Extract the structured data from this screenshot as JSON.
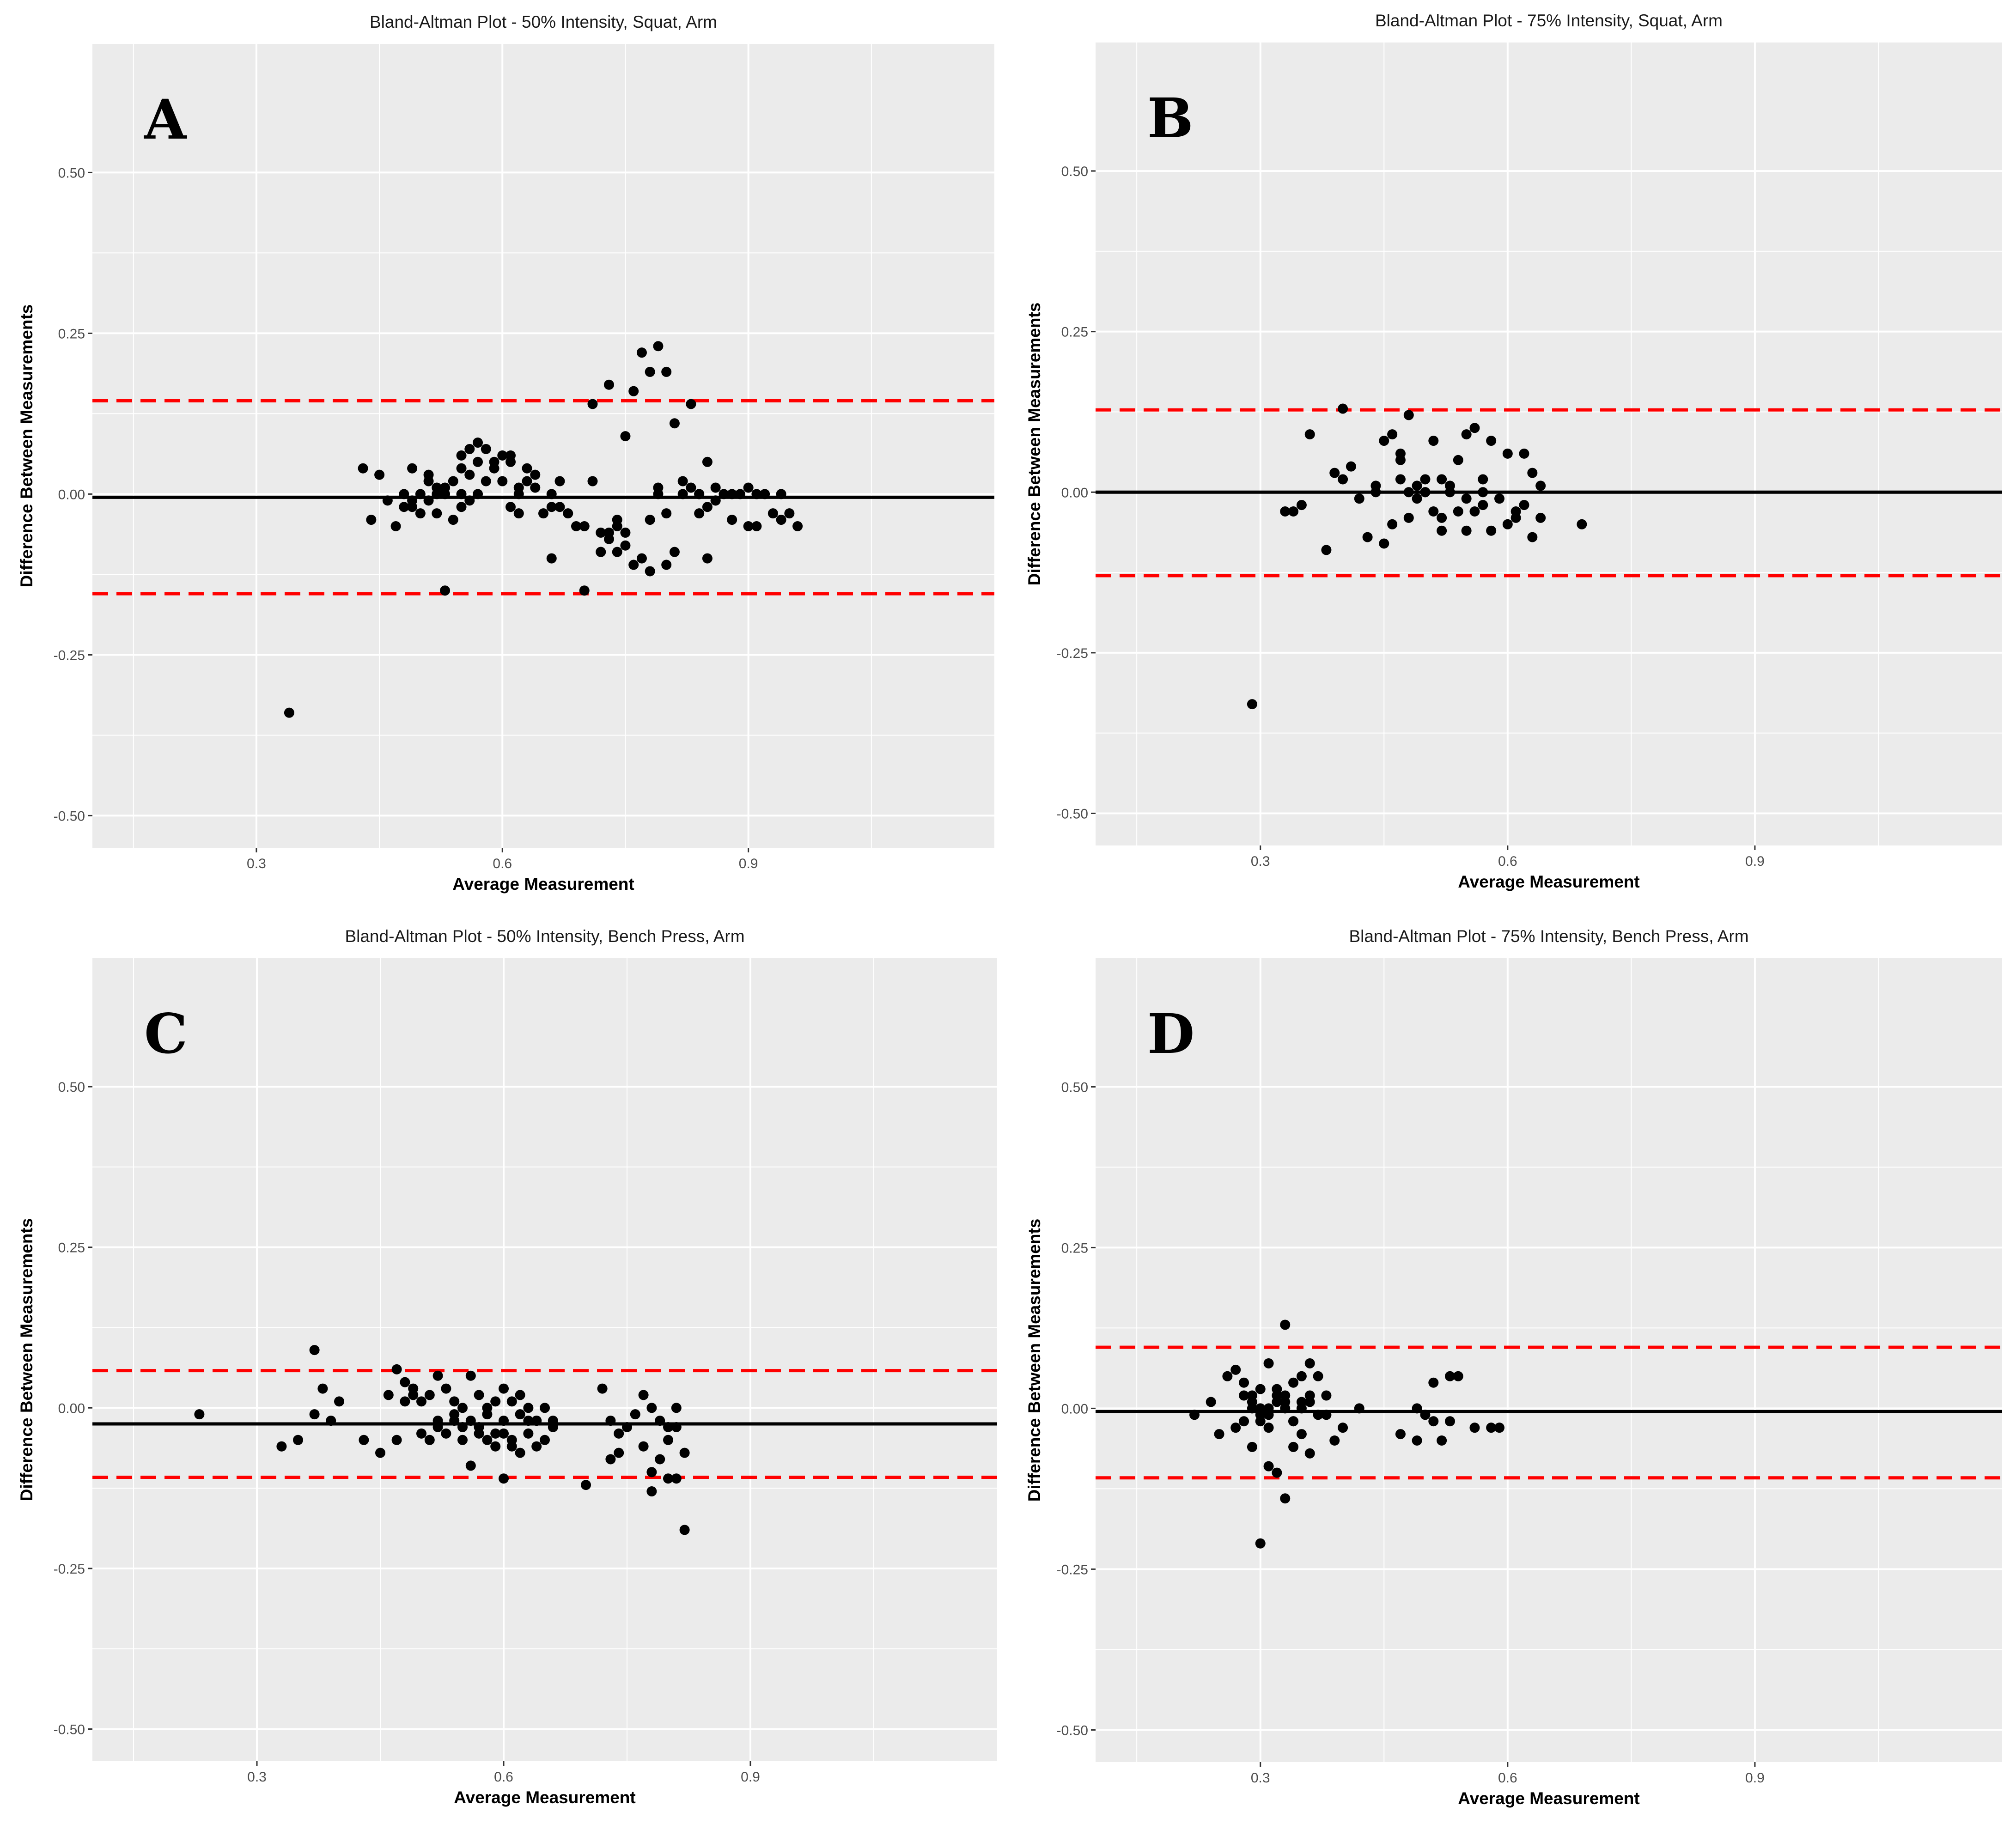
{
  "figure": {
    "background": "#ffffff",
    "panel_background": "#ebebeb",
    "grid_color": "#ffffff",
    "point_color": "#000000",
    "mean_line_color": "#000000",
    "limit_line_color": "#ff0000"
  },
  "chart_data": [
    {
      "letter": "A",
      "type": "scatter",
      "title": "Bland-Altman Plot - 50% Intensity, Squat, Arm",
      "xlabel": "Average Measurement",
      "ylabel": "Difference Between Measurements",
      "xlim": [
        0.1,
        1.2
      ],
      "ylim": [
        -0.55,
        0.7
      ],
      "xticks": [
        0.3,
        0.6,
        0.9
      ],
      "xtick_labels": [
        "0.3",
        "0.6",
        "0.9"
      ],
      "yticks": [
        0.5,
        0.25,
        0.0,
        -0.25,
        -0.5
      ],
      "ytick_labels": [
        "0.50",
        "0.25",
        "0.00",
        "-0.25",
        "-0.50"
      ],
      "mean_diff": -0.005,
      "upper_loa": 0.145,
      "lower_loa": -0.155,
      "grid": true,
      "x": [
        0.34,
        0.43,
        0.44,
        0.45,
        0.46,
        0.47,
        0.48,
        0.49,
        0.49,
        0.5,
        0.5,
        0.51,
        0.51,
        0.52,
        0.52,
        0.53,
        0.53,
        0.54,
        0.54,
        0.55,
        0.55,
        0.55,
        0.56,
        0.56,
        0.57,
        0.57,
        0.58,
        0.59,
        0.6,
        0.6,
        0.61,
        0.61,
        0.62,
        0.62,
        0.63,
        0.64,
        0.65,
        0.66,
        0.66,
        0.67,
        0.68,
        0.69,
        0.7,
        0.71,
        0.71,
        0.72,
        0.72,
        0.73,
        0.73,
        0.74,
        0.74,
        0.75,
        0.75,
        0.76,
        0.76,
        0.77,
        0.77,
        0.78,
        0.78,
        0.79,
        0.79,
        0.8,
        0.8,
        0.81,
        0.81,
        0.82,
        0.83,
        0.83,
        0.84,
        0.84,
        0.85,
        0.85,
        0.86,
        0.86,
        0.87,
        0.88,
        0.89,
        0.9,
        0.91,
        0.92,
        0.93,
        0.94,
        0.95,
        0.96,
        0.49,
        0.53,
        0.55,
        0.58,
        0.61,
        0.64,
        0.67,
        0.7,
        0.75,
        0.78,
        0.8,
        0.85,
        0.88,
        0.52,
        0.57,
        0.63,
        0.72,
        0.79,
        0.84,
        0.9,
        0.94,
        0.48,
        0.51,
        0.56,
        0.59,
        0.62,
        0.66,
        0.74,
        0.82,
        0.86,
        0.91,
        0.73
      ],
      "y": [
        -0.34,
        0.04,
        -0.04,
        0.03,
        -0.01,
        -0.05,
        0.0,
        -0.02,
        0.04,
        -0.03,
        0.0,
        0.02,
        -0.01,
        0.0,
        -0.03,
        0.01,
        -0.15,
        0.02,
        -0.04,
        0.06,
        0.04,
        0.0,
        0.07,
        0.03,
        0.08,
        0.05,
        0.07,
        0.04,
        0.06,
        0.02,
        0.05,
        -0.02,
        0.0,
        -0.03,
        0.02,
        0.03,
        -0.03,
        0.0,
        -0.1,
        0.02,
        -0.03,
        -0.05,
        -0.15,
        0.02,
        0.14,
        -0.06,
        -0.09,
        0.17,
        -0.07,
        -0.04,
        -0.09,
        0.09,
        -0.06,
        0.16,
        -0.11,
        0.22,
        -0.1,
        0.19,
        -0.12,
        0.23,
        0.0,
        0.19,
        -0.03,
        0.11,
        -0.09,
        0.02,
        0.14,
        0.01,
        0.0,
        -0.03,
        0.05,
        -0.1,
        0.01,
        -0.01,
        0.0,
        -0.04,
        0.0,
        0.01,
        -0.05,
        0.0,
        -0.03,
        -0.04,
        -0.03,
        -0.05,
        -0.01,
        0.0,
        -0.02,
        0.02,
        0.06,
        0.01,
        -0.02,
        -0.05,
        -0.08,
        -0.04,
        -0.11,
        -0.02,
        0.0,
        0.01,
        0.0,
        0.04,
        -0.09,
        0.01,
        0.0,
        -0.05,
        0.0,
        -0.02,
        0.03,
        -0.01,
        0.05,
        0.01,
        -0.02,
        -0.05,
        0.0,
        -0.01,
        0.0,
        -0.06
      ]
    },
    {
      "letter": "B",
      "type": "scatter",
      "title": "Bland-Altman Plot - 75% Intensity, Squat, Arm",
      "xlabel": "Average Measurement",
      "ylabel": "Difference Between Measurements",
      "xlim": [
        0.1,
        1.2
      ],
      "ylim": [
        -0.55,
        0.7
      ],
      "xticks": [
        0.3,
        0.6,
        0.9
      ],
      "xtick_labels": [
        "0.3",
        "0.6",
        "0.9"
      ],
      "yticks": [
        0.5,
        0.25,
        0.0,
        -0.25,
        -0.5
      ],
      "ytick_labels": [
        "0.50",
        "0.25",
        "0.00",
        "-0.25",
        "-0.50"
      ],
      "mean_diff": 0.0,
      "upper_loa": 0.128,
      "lower_loa": -0.13,
      "grid": true,
      "x": [
        0.29,
        0.33,
        0.34,
        0.35,
        0.36,
        0.38,
        0.39,
        0.4,
        0.4,
        0.41,
        0.42,
        0.43,
        0.44,
        0.45,
        0.45,
        0.46,
        0.46,
        0.47,
        0.47,
        0.48,
        0.48,
        0.49,
        0.49,
        0.5,
        0.5,
        0.51,
        0.51,
        0.52,
        0.52,
        0.53,
        0.54,
        0.54,
        0.55,
        0.55,
        0.56,
        0.56,
        0.57,
        0.57,
        0.58,
        0.59,
        0.6,
        0.61,
        0.62,
        0.62,
        0.63,
        0.63,
        0.64,
        0.64,
        0.69,
        0.48,
        0.5,
        0.53,
        0.55,
        0.58,
        0.61,
        0.47,
        0.52,
        0.57,
        0.44,
        0.6
      ],
      "y": [
        -0.33,
        -0.03,
        -0.03,
        -0.02,
        0.09,
        -0.09,
        0.03,
        0.13,
        0.02,
        0.04,
        -0.01,
        -0.07,
        0.0,
        0.08,
        -0.08,
        0.09,
        -0.05,
        0.05,
        0.02,
        0.12,
        0.0,
        0.01,
        -0.01,
        0.0,
        0.02,
        0.08,
        -0.03,
        -0.06,
        0.02,
        0.0,
        0.05,
        -0.03,
        0.09,
        -0.06,
        0.1,
        -0.03,
        -0.02,
        0.0,
        0.08,
        -0.01,
        0.06,
        -0.04,
        0.06,
        -0.02,
        0.03,
        -0.07,
        0.01,
        -0.04,
        -0.05,
        -0.04,
        0.0,
        0.01,
        -0.01,
        -0.06,
        -0.03,
        0.06,
        -0.04,
        0.02,
        0.01,
        -0.05
      ]
    },
    {
      "letter": "C",
      "type": "scatter",
      "title": "Bland-Altman Plot - 50% Intensity, Bench Press, Arm",
      "xlabel": "Average Measurement",
      "ylabel": "Difference Between Measurements",
      "xlim": [
        0.1,
        1.2
      ],
      "ylim": [
        -0.55,
        0.7
      ],
      "xticks": [
        0.3,
        0.6,
        0.9
      ],
      "xtick_labels": [
        "0.3",
        "0.6",
        "0.9"
      ],
      "yticks": [
        0.5,
        0.25,
        0.0,
        -0.25,
        -0.5
      ],
      "ytick_labels": [
        "0.50",
        "0.25",
        "0.00",
        "-0.25",
        "-0.50"
      ],
      "mean_diff": -0.025,
      "upper_loa": 0.058,
      "lower_loa": -0.108,
      "grid": true,
      "x": [
        0.23,
        0.33,
        0.35,
        0.37,
        0.37,
        0.38,
        0.39,
        0.4,
        0.43,
        0.45,
        0.46,
        0.47,
        0.47,
        0.48,
        0.48,
        0.49,
        0.5,
        0.5,
        0.51,
        0.51,
        0.52,
        0.52,
        0.53,
        0.53,
        0.54,
        0.54,
        0.55,
        0.55,
        0.56,
        0.56,
        0.57,
        0.57,
        0.58,
        0.58,
        0.59,
        0.59,
        0.6,
        0.6,
        0.6,
        0.61,
        0.61,
        0.62,
        0.62,
        0.63,
        0.63,
        0.64,
        0.64,
        0.65,
        0.65,
        0.66,
        0.66,
        0.7,
        0.72,
        0.73,
        0.73,
        0.74,
        0.75,
        0.76,
        0.77,
        0.77,
        0.78,
        0.78,
        0.79,
        0.79,
        0.8,
        0.8,
        0.81,
        0.81,
        0.82,
        0.82,
        0.81,
        0.54,
        0.57,
        0.6,
        0.63,
        0.52,
        0.58,
        0.61,
        0.64,
        0.49,
        0.55,
        0.59,
        0.62,
        0.56,
        0.74,
        0.78,
        0.8
      ],
      "y": [
        -0.01,
        -0.06,
        -0.05,
        -0.01,
        0.09,
        0.03,
        -0.02,
        0.01,
        -0.05,
        -0.07,
        0.02,
        -0.05,
        0.06,
        0.04,
        0.01,
        0.03,
        0.01,
        -0.04,
        0.02,
        -0.05,
        0.05,
        -0.02,
        0.03,
        -0.04,
        0.01,
        -0.02,
        0.0,
        -0.05,
        0.05,
        -0.09,
        0.02,
        -0.03,
        0.0,
        -0.05,
        0.01,
        -0.06,
        0.03,
        -0.11,
        -0.02,
        0.01,
        -0.06,
        0.02,
        -0.07,
        0.0,
        -0.04,
        -0.02,
        -0.06,
        0.0,
        -0.05,
        -0.02,
        -0.03,
        -0.12,
        0.03,
        -0.02,
        -0.08,
        -0.07,
        -0.03,
        -0.01,
        0.02,
        -0.06,
        -0.13,
        0.0,
        -0.02,
        -0.08,
        -0.05,
        -0.11,
        -0.03,
        -0.11,
        -0.07,
        -0.19,
        0.0,
        -0.01,
        -0.04,
        -0.04,
        -0.02,
        -0.03,
        -0.01,
        -0.05,
        -0.02,
        0.02,
        -0.03,
        -0.04,
        -0.01,
        -0.02,
        -0.04,
        -0.1,
        -0.03
      ]
    },
    {
      "letter": "D",
      "type": "scatter",
      "title": "Bland-Altman Plot - 75% Intensity, Bench Press, Arm",
      "xlabel": "Average Measurement",
      "ylabel": "Difference Between Measurements",
      "xlim": [
        0.1,
        1.2
      ],
      "ylim": [
        -0.55,
        0.7
      ],
      "xticks": [
        0.3,
        0.6,
        0.9
      ],
      "xtick_labels": [
        "0.3",
        "0.6",
        "0.9"
      ],
      "yticks": [
        0.5,
        0.25,
        0.0,
        -0.25,
        -0.5
      ],
      "ytick_labels": [
        "0.50",
        "0.25",
        "0.00",
        "-0.25",
        "-0.50"
      ],
      "mean_diff": -0.005,
      "upper_loa": 0.095,
      "lower_loa": -0.108,
      "grid": true,
      "x": [
        0.22,
        0.24,
        0.25,
        0.26,
        0.27,
        0.27,
        0.28,
        0.28,
        0.29,
        0.29,
        0.3,
        0.3,
        0.3,
        0.31,
        0.31,
        0.31,
        0.32,
        0.32,
        0.32,
        0.33,
        0.33,
        0.33,
        0.34,
        0.34,
        0.34,
        0.35,
        0.35,
        0.35,
        0.36,
        0.36,
        0.36,
        0.37,
        0.38,
        0.38,
        0.39,
        0.4,
        0.42,
        0.47,
        0.49,
        0.49,
        0.5,
        0.51,
        0.51,
        0.52,
        0.53,
        0.53,
        0.54,
        0.56,
        0.58,
        0.59,
        0.3,
        0.31,
        0.32,
        0.33,
        0.28,
        0.29,
        0.34,
        0.35,
        0.31,
        0.33,
        0.3,
        0.29,
        0.36,
        0.37
      ],
      "y": [
        -0.01,
        0.01,
        -0.04,
        0.05,
        -0.03,
        0.06,
        0.04,
        -0.02,
        0.02,
        -0.06,
        0.03,
        -0.21,
        -0.01,
        0.07,
        -0.09,
        0.0,
        0.03,
        -0.1,
        0.01,
        0.13,
        -0.14,
        0.02,
        0.04,
        -0.06,
        -0.02,
        0.05,
        -0.04,
        0.0,
        0.07,
        -0.07,
        0.01,
        0.05,
        0.02,
        -0.01,
        -0.05,
        -0.03,
        0.0,
        -0.04,
        -0.05,
        0.0,
        -0.01,
        0.04,
        -0.02,
        -0.05,
        -0.02,
        0.05,
        0.05,
        -0.03,
        -0.03,
        -0.03,
        0.0,
        -0.03,
        0.02,
        0.01,
        0.02,
        0.0,
        -0.02,
        0.01,
        -0.01,
        0.0,
        -0.02,
        0.01,
        0.02,
        -0.01
      ]
    }
  ]
}
